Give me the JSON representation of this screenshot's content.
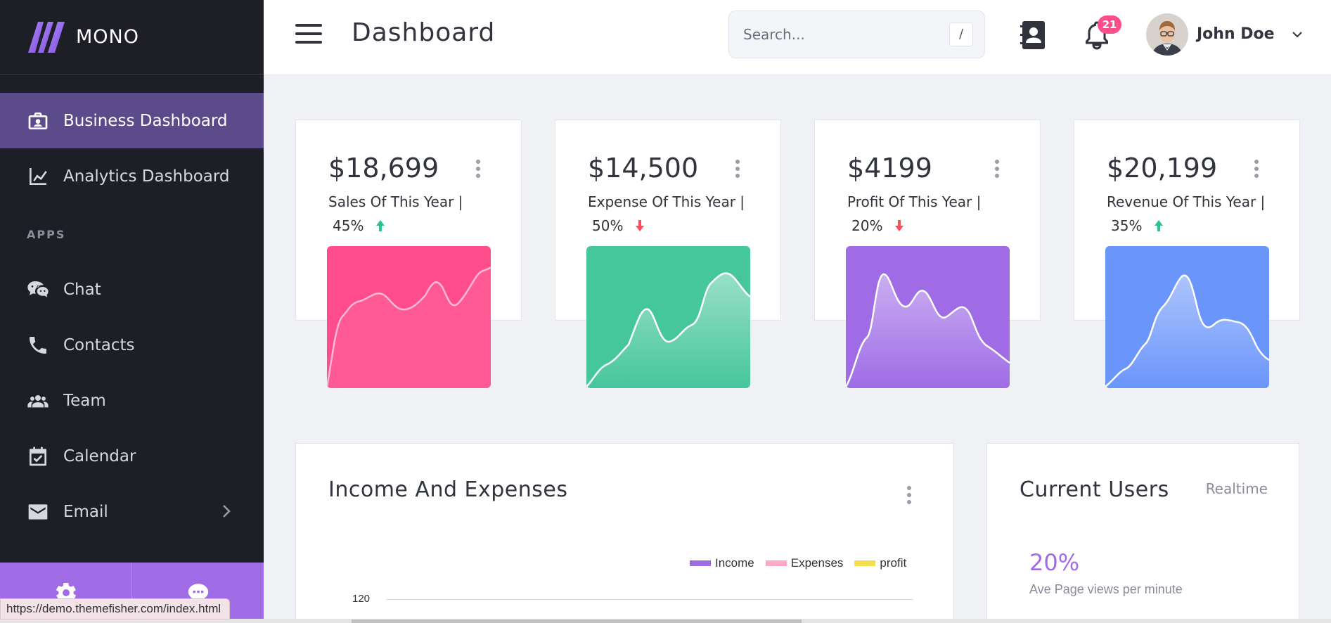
{
  "brand": {
    "name": "MONO"
  },
  "sidebar": {
    "items": [
      {
        "label": "Business Dashboard",
        "icon": "briefcase-icon",
        "active": true
      },
      {
        "label": "Analytics Dashboard",
        "icon": "line-chart-icon",
        "active": false
      }
    ],
    "section_label": "APPS",
    "apps": [
      {
        "label": "Chat",
        "icon": "chat-icon"
      },
      {
        "label": "Contacts",
        "icon": "phone-icon"
      },
      {
        "label": "Team",
        "icon": "team-icon"
      },
      {
        "label": "Calendar",
        "icon": "calendar-icon"
      },
      {
        "label": "Email",
        "icon": "email-icon"
      }
    ],
    "footer": [
      {
        "icon": "gear-icon"
      },
      {
        "icon": "chat-bubble-icon"
      }
    ]
  },
  "header": {
    "title": "Dashboard",
    "search_placeholder": "Search...",
    "search_shortcut": "/",
    "notification_count": "21",
    "user_name": "John Doe"
  },
  "stats": [
    {
      "value": "$18,699",
      "label": "Sales Of This Year  |",
      "percent": "45%",
      "trend": "up",
      "color": "#ff4d8b"
    },
    {
      "value": "$14,500",
      "label": "Expense Of This Year  |",
      "percent": "50%",
      "trend": "down",
      "color": "#46c69b"
    },
    {
      "value": "$4199",
      "label": "Profit Of This Year  |",
      "percent": "20%",
      "trend": "down",
      "color": "#9f6ce6"
    },
    {
      "value": "$20,199",
      "label": "Revenue Of This Year  |",
      "percent": "35%",
      "trend": "up",
      "color": "#6a95fb"
    }
  ],
  "income_panel": {
    "title": "Income And Expenses",
    "legend": [
      {
        "name": "Income",
        "color": "#9f6ce6"
      },
      {
        "name": "Expenses",
        "color": "#ffa8c8"
      },
      {
        "name": "profit",
        "color": "#f5de50"
      }
    ],
    "y_tick": "120"
  },
  "users_panel": {
    "title": "Current Users",
    "mode": "Realtime",
    "percent": "20%",
    "metric_label": "Ave Page views per minute"
  },
  "status_bar": {
    "url": "https://demo.themefisher.com/index.html"
  }
}
